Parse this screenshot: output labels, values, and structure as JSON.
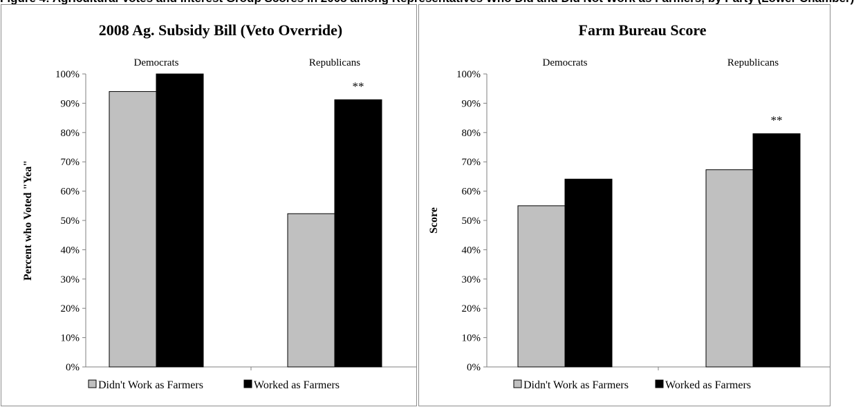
{
  "figure_caption": "Figure 4: Agricultural Votes and Interest Group Scores in 2008 among Representatives Who Did and Did Not Work as Farmers, by Party (Lower Chamber)",
  "chart_data": [
    {
      "type": "bar",
      "title": "2008 Ag. Subsidy Bill (Veto Override)",
      "ylabel": "Percent who Voted \"Yea\"",
      "xlabel": "",
      "ylim": [
        0,
        100
      ],
      "y_ticks": [
        "0%",
        "10%",
        "20%",
        "30%",
        "40%",
        "50%",
        "60%",
        "70%",
        "80%",
        "90%",
        "100%"
      ],
      "categories": [
        "Democrats",
        "Republicans"
      ],
      "series": [
        {
          "name": "Didn't Work as Farmers",
          "color": "#c0c0c0",
          "values": [
            94,
            52.3
          ]
        },
        {
          "name": "Worked as Farmers",
          "color": "#000000",
          "values": [
            100,
            91.2
          ]
        }
      ],
      "annotations": [
        {
          "category": "Republicans",
          "text": "**"
        }
      ],
      "legend": "bottom",
      "grid": false
    },
    {
      "type": "bar",
      "title": "Farm Bureau Score",
      "ylabel": "Score",
      "xlabel": "",
      "ylim": [
        0,
        100
      ],
      "y_ticks": [
        "0%",
        "10%",
        "20%",
        "30%",
        "40%",
        "50%",
        "60%",
        "70%",
        "80%",
        "90%",
        "100%"
      ],
      "categories": [
        "Democrats",
        "Republicans"
      ],
      "series": [
        {
          "name": "Didn't Work as Farmers",
          "color": "#c0c0c0",
          "values": [
            55,
            67.3
          ]
        },
        {
          "name": "Worked as Farmers",
          "color": "#000000",
          "values": [
            64.1,
            79.6
          ]
        }
      ],
      "annotations": [
        {
          "category": "Republicans",
          "text": "**"
        }
      ],
      "legend": "bottom",
      "grid": false
    }
  ]
}
